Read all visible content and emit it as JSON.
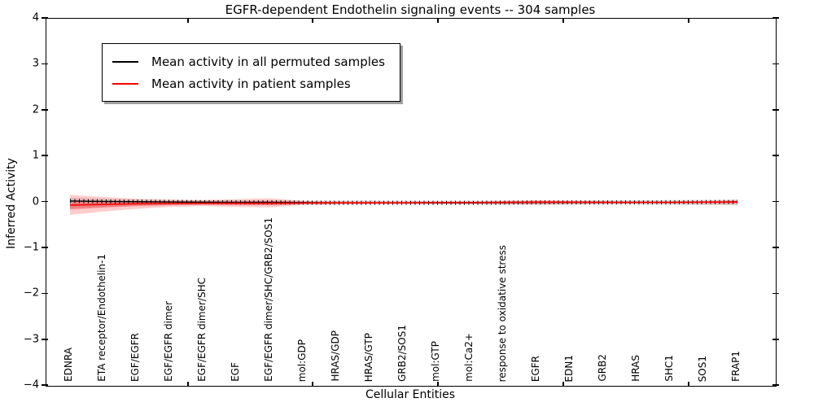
{
  "legend": {
    "items": [
      {
        "label": "Mean activity in all permuted samples",
        "color": "#000000"
      },
      {
        "label": "Mean activity in patient samples",
        "color": "#ff0000"
      }
    ]
  },
  "axis": {
    "yticks": [
      "4",
      "3",
      "2",
      "1",
      "0",
      "−1",
      "−2",
      "−3",
      "−4"
    ],
    "ytick_values": [
      4,
      3,
      2,
      1,
      0,
      -1,
      -2,
      -3,
      -4
    ]
  },
  "chart_data": {
    "type": "line",
    "title": "EGFR-dependent Endothelin signaling events -- 304 samples",
    "xlabel": "Cellular Entities",
    "ylabel": "Inferred Activity",
    "ylim": [
      -4,
      4
    ],
    "grid": false,
    "legend_position": "upper left",
    "categories": [
      "EDNRA",
      "ETA receptor/Endothelin-1",
      "EGF/EGFR",
      "EGF/EGFR dimer",
      "EGF/EGFR dimer/SHC",
      "EGF",
      "EGF/EGFR dimer/SHC/GRB2/SOS1",
      "mol:GDP",
      "HRAS/GDP",
      "HRAS/GTP",
      "GRB2/SOS1",
      "mol:GTP",
      "mol:Ca2+",
      "response to oxidative stress",
      "EGFR",
      "EDN1",
      "GRB2",
      "HRAS",
      "SHC1",
      "SOS1",
      "FRAP1"
    ],
    "series": [
      {
        "name": "Mean activity in all permuted samples",
        "color": "#000000",
        "values": [
          0.03,
          0.02,
          0.015,
          0.01,
          0.005,
          0.0,
          0.0,
          -0.005,
          -0.01,
          -0.01,
          -0.01,
          -0.01,
          -0.01,
          -0.005,
          0.0,
          0.0,
          0.0,
          0.0,
          0.0,
          0.005,
          0.01
        ]
      },
      {
        "name": "Mean activity in patient samples",
        "color": "#ff0000",
        "values": [
          -0.06,
          -0.045,
          -0.03,
          -0.025,
          -0.02,
          -0.02,
          -0.02,
          -0.015,
          -0.01,
          -0.01,
          -0.01,
          -0.005,
          -0.005,
          0.0,
          0.005,
          0.005,
          0.0,
          0.0,
          0.0,
          0.005,
          0.01
        ]
      }
    ],
    "bands": [
      {
        "name": "permuted-std-band",
        "color": "rgba(0,0,0,0.12)",
        "upper": [
          0.1,
          0.08,
          0.06,
          0.05,
          0.045,
          0.045,
          0.045,
          0.04,
          0.04,
          0.04,
          0.035,
          0.035,
          0.035,
          0.04,
          0.04,
          0.04,
          0.045,
          0.045,
          0.05,
          0.055,
          0.06
        ],
        "lower": [
          -0.13,
          -0.1,
          -0.08,
          -0.065,
          -0.055,
          -0.055,
          -0.06,
          -0.06,
          -0.055,
          -0.05,
          -0.05,
          -0.05,
          -0.05,
          -0.055,
          -0.055,
          -0.05,
          -0.05,
          -0.05,
          -0.055,
          -0.06,
          -0.065
        ]
      },
      {
        "name": "patient-std-band",
        "color": "rgba(255,0,0,0.20)",
        "upper": [
          0.16,
          0.12,
          0.08,
          0.06,
          0.05,
          0.07,
          0.09,
          0.03,
          0.025,
          0.02,
          0.02,
          0.02,
          0.02,
          0.03,
          0.045,
          0.035,
          0.025,
          0.02,
          0.02,
          0.03,
          0.05
        ],
        "lower": [
          -0.27,
          -0.2,
          -0.14,
          -0.1,
          -0.08,
          -0.1,
          -0.11,
          -0.05,
          -0.04,
          -0.035,
          -0.03,
          -0.03,
          -0.03,
          -0.04,
          -0.05,
          -0.04,
          -0.03,
          -0.025,
          -0.025,
          -0.035,
          -0.05
        ]
      }
    ]
  }
}
